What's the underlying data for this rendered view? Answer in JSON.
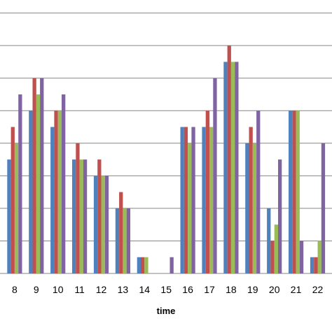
{
  "chart_data": {
    "type": "bar",
    "title": "",
    "xlabel": "time",
    "ylabel": "",
    "categories": [
      "8",
      "9",
      "10",
      "11",
      "12",
      "13",
      "14",
      "15",
      "16",
      "17",
      "18",
      "19",
      "20",
      "21",
      "22"
    ],
    "ylim": [
      0,
      8.4
    ],
    "grid": true,
    "series": [
      {
        "color": "#4F81BD",
        "values": [
          3.5,
          5.0,
          4.5,
          3.5,
          3.0,
          2.0,
          0.5,
          0,
          4.5,
          4.5,
          6.5,
          4.0,
          2.0,
          5.0,
          0.5
        ]
      },
      {
        "color": "#C0504D",
        "values": [
          4.5,
          6.0,
          5.0,
          4.0,
          3.5,
          2.5,
          0.5,
          0,
          4.5,
          5.0,
          7.0,
          4.5,
          1.0,
          5.0,
          0.5
        ]
      },
      {
        "color": "#9BBB59",
        "values": [
          4.0,
          5.5,
          5.0,
          3.5,
          3.0,
          2.0,
          0.5,
          0,
          4.0,
          4.5,
          6.5,
          4.0,
          1.5,
          5.0,
          1.0
        ]
      },
      {
        "color": "#8064A2",
        "values": [
          5.5,
          6.0,
          5.5,
          3.5,
          3.0,
          2.0,
          0,
          0.5,
          4.5,
          6.0,
          6.5,
          5.0,
          3.5,
          1.0,
          4.0
        ]
      }
    ]
  }
}
